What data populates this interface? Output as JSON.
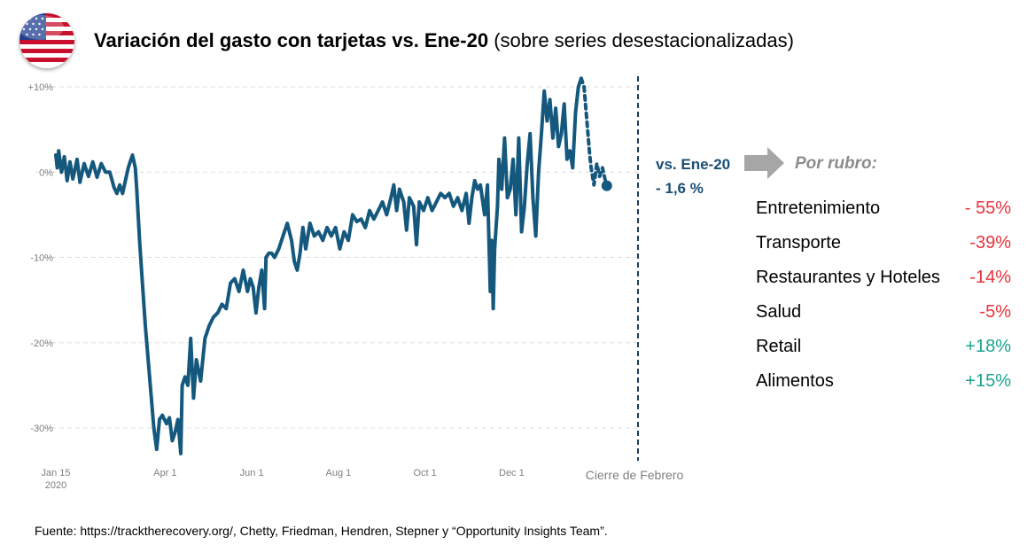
{
  "title": {
    "bold": "Variación del gasto con tarjetas vs. Ene-20",
    "normal": " (sobre series desestacionalizadas)"
  },
  "flag_icon": "us-flag-icon",
  "colors": {
    "series": "#14587d",
    "negative": "#e8323c",
    "positive": "#1aa38f",
    "muted": "#8c8c8c",
    "callout": "#1a4f74"
  },
  "callout": {
    "line1": "vs. Ene-20",
    "line2": "- 1,6 %"
  },
  "por_rubro": "Por rubro:",
  "rubros": [
    {
      "label": "Entretenimiento",
      "value": "- 55%",
      "sign": "negative"
    },
    {
      "label": "Transporte",
      "value": "-39%",
      "sign": "negative"
    },
    {
      "label": "Restaurantes y Hoteles",
      "value": "-14%",
      "sign": "negative"
    },
    {
      "label": "Salud",
      "value": "-5%",
      "sign": "negative"
    },
    {
      "label": "Retail",
      "value": "+18%",
      "sign": "positive"
    },
    {
      "label": "Alimentos",
      "value": "+15%",
      "sign": "positive"
    }
  ],
  "source": "Fuente: https://tracktherecovery.org/, Chetty, Friedman, Hendren, Stepner y “Opportunity Insights Team”.",
  "chart_data": {
    "type": "line",
    "title": "Variación del gasto con tarjetas vs. Ene-20",
    "ylim": [
      -33,
      10.5
    ],
    "yticks": [
      10,
      0,
      -10,
      -20,
      -30
    ],
    "ytick_labels": [
      "+10%",
      "0%",
      "-10%",
      "-20%",
      "-30%"
    ],
    "xlim": [
      "2020-01-15",
      "2021-02-28"
    ],
    "xticks": [
      {
        "date": "2020-01-15",
        "label": "Jan 15",
        "label2": "2020"
      },
      {
        "date": "2020-04-01",
        "label": "Apr 1"
      },
      {
        "date": "2020-06-01",
        "label": "Jun 1"
      },
      {
        "date": "2020-08-01",
        "label": "Aug 1"
      },
      {
        "date": "2020-10-01",
        "label": "Oct 1"
      },
      {
        "date": "2020-12-01",
        "label": "Dec 1"
      },
      {
        "date": "2021-02-28",
        "label": "Cierre de Febrero"
      }
    ],
    "grid": true,
    "series": [
      {
        "values": [
          [
            "2020-01-15",
            2
          ],
          [
            "2020-01-16",
            0.5
          ],
          [
            "2020-01-17",
            2.5
          ],
          [
            "2020-01-19",
            0
          ],
          [
            "2020-01-21",
            1.8
          ],
          [
            "2020-01-23",
            -1
          ],
          [
            "2020-01-25",
            1.2
          ],
          [
            "2020-01-27",
            -0.8
          ],
          [
            "2020-01-30",
            1.5
          ],
          [
            "2020-02-01",
            -1.2
          ],
          [
            "2020-02-04",
            1
          ],
          [
            "2020-02-07",
            -0.5
          ],
          [
            "2020-02-10",
            1.2
          ],
          [
            "2020-02-13",
            -0.6
          ],
          [
            "2020-02-16",
            1
          ],
          [
            "2020-02-19",
            0
          ],
          [
            "2020-02-22",
            0
          ],
          [
            "2020-02-25",
            -1.8
          ],
          [
            "2020-02-27",
            -2.5
          ],
          [
            "2020-02-29",
            -1.5
          ],
          [
            "2020-03-02",
            -2.5
          ],
          [
            "2020-03-04",
            -1
          ],
          [
            "2020-03-06",
            0.5
          ],
          [
            "2020-03-08",
            1.5
          ],
          [
            "2020-03-09",
            2
          ],
          [
            "2020-03-11",
            0.5
          ],
          [
            "2020-03-12",
            -2
          ],
          [
            "2020-03-14",
            -8
          ],
          [
            "2020-03-16",
            -13
          ],
          [
            "2020-03-18",
            -18
          ],
          [
            "2020-03-20",
            -22
          ],
          [
            "2020-03-22",
            -26
          ],
          [
            "2020-03-24",
            -30
          ],
          [
            "2020-03-26",
            -32.5
          ],
          [
            "2020-03-28",
            -29
          ],
          [
            "2020-03-30",
            -28.5
          ],
          [
            "2020-04-02",
            -29.5
          ],
          [
            "2020-04-04",
            -28.8
          ],
          [
            "2020-04-06",
            -31.5
          ],
          [
            "2020-04-08",
            -30.5
          ],
          [
            "2020-04-10",
            -29
          ],
          [
            "2020-04-12",
            -33
          ],
          [
            "2020-04-13",
            -25
          ],
          [
            "2020-04-15",
            -24
          ],
          [
            "2020-04-17",
            -25
          ],
          [
            "2020-04-19",
            -19.5
          ],
          [
            "2020-04-21",
            -26.5
          ],
          [
            "2020-04-23",
            -22
          ],
          [
            "2020-04-26",
            -24.5
          ],
          [
            "2020-04-29",
            -19.5
          ],
          [
            "2020-05-02",
            -18
          ],
          [
            "2020-05-05",
            -17
          ],
          [
            "2020-05-08",
            -16.5
          ],
          [
            "2020-05-11",
            -15.5
          ],
          [
            "2020-05-14",
            -16
          ],
          [
            "2020-05-17",
            -13
          ],
          [
            "2020-05-20",
            -12.5
          ],
          [
            "2020-05-23",
            -14
          ],
          [
            "2020-05-26",
            -11.5
          ],
          [
            "2020-05-29",
            -14
          ],
          [
            "2020-05-31",
            -12.5
          ],
          [
            "2020-06-02",
            -13.5
          ],
          [
            "2020-06-04",
            -16.5
          ],
          [
            "2020-06-06",
            -13.5
          ],
          [
            "2020-06-08",
            -11.5
          ],
          [
            "2020-06-10",
            -16
          ],
          [
            "2020-06-11",
            -10
          ],
          [
            "2020-06-13",
            -9.5
          ],
          [
            "2020-06-15",
            -9.5
          ],
          [
            "2020-06-17",
            -10
          ],
          [
            "2020-06-20",
            -9
          ],
          [
            "2020-06-23",
            -7.5
          ],
          [
            "2020-06-26",
            -6
          ],
          [
            "2020-06-29",
            -8
          ],
          [
            "2020-07-01",
            -10.5
          ],
          [
            "2020-07-03",
            -11.5
          ],
          [
            "2020-07-05",
            -9.5
          ],
          [
            "2020-07-07",
            -6.5
          ],
          [
            "2020-07-09",
            -9
          ],
          [
            "2020-07-12",
            -6
          ],
          [
            "2020-07-15",
            -7.5
          ],
          [
            "2020-07-18",
            -7
          ],
          [
            "2020-07-21",
            -8
          ],
          [
            "2020-07-24",
            -6.5
          ],
          [
            "2020-07-27",
            -7.5
          ],
          [
            "2020-07-30",
            -6.5
          ],
          [
            "2020-08-02",
            -9
          ],
          [
            "2020-08-05",
            -7
          ],
          [
            "2020-08-08",
            -8
          ],
          [
            "2020-08-11",
            -5
          ],
          [
            "2020-08-14",
            -5.8
          ],
          [
            "2020-08-17",
            -5.5
          ],
          [
            "2020-08-20",
            -6.5
          ],
          [
            "2020-08-23",
            -4.5
          ],
          [
            "2020-08-26",
            -5.5
          ],
          [
            "2020-08-29",
            -4.5
          ],
          [
            "2020-09-01",
            -3.5
          ],
          [
            "2020-09-04",
            -5
          ],
          [
            "2020-09-07",
            -3
          ],
          [
            "2020-09-09",
            -1.5
          ],
          [
            "2020-09-11",
            -4.5
          ],
          [
            "2020-09-13",
            -2
          ],
          [
            "2020-09-16",
            -3.5
          ],
          [
            "2020-09-18",
            -6.8
          ],
          [
            "2020-09-20",
            -3
          ],
          [
            "2020-09-23",
            -4
          ],
          [
            "2020-09-25",
            -8.5
          ],
          [
            "2020-09-27",
            -3.5
          ],
          [
            "2020-09-30",
            -4.5
          ],
          [
            "2020-10-03",
            -3
          ],
          [
            "2020-10-06",
            -4.5
          ],
          [
            "2020-10-09",
            -3.5
          ],
          [
            "2020-10-12",
            -2.5
          ],
          [
            "2020-10-15",
            -3
          ],
          [
            "2020-10-18",
            -2.5
          ],
          [
            "2020-10-21",
            -4
          ],
          [
            "2020-10-24",
            -3
          ],
          [
            "2020-10-27",
            -4.5
          ],
          [
            "2020-10-30",
            -2.5
          ],
          [
            "2020-11-01",
            -6
          ],
          [
            "2020-11-03",
            -3
          ],
          [
            "2020-11-05",
            -1
          ],
          [
            "2020-11-07",
            -2
          ],
          [
            "2020-11-09",
            -1.5
          ],
          [
            "2020-11-12",
            -5
          ],
          [
            "2020-11-14",
            -1.5
          ],
          [
            "2020-11-16",
            -14
          ],
          [
            "2020-11-17",
            -8
          ],
          [
            "2020-11-18",
            -16
          ],
          [
            "2020-11-19",
            -9
          ],
          [
            "2020-11-21",
            -4
          ],
          [
            "2020-11-22",
            1.5
          ],
          [
            "2020-11-24",
            -2
          ],
          [
            "2020-11-26",
            4
          ],
          [
            "2020-11-28",
            -3
          ],
          [
            "2020-11-30",
            -2
          ],
          [
            "2020-12-02",
            1.5
          ],
          [
            "2020-12-04",
            -5
          ],
          [
            "2020-12-06",
            4
          ],
          [
            "2020-12-08",
            -7
          ],
          [
            "2020-12-10",
            -4
          ],
          [
            "2020-12-12",
            1
          ],
          [
            "2020-12-14",
            4.5
          ],
          [
            "2020-12-16",
            -3
          ],
          [
            "2020-12-18",
            -7.5
          ],
          [
            "2020-12-20",
            0
          ],
          [
            "2020-12-22",
            4.5
          ],
          [
            "2020-12-24",
            9.5
          ],
          [
            "2020-12-26",
            6
          ],
          [
            "2020-12-28",
            8.5
          ],
          [
            "2020-12-30",
            4
          ],
          [
            "2021-01-01",
            7.5
          ],
          [
            "2021-01-03",
            3
          ],
          [
            "2021-01-05",
            4.5
          ],
          [
            "2021-01-07",
            8
          ],
          [
            "2021-01-09",
            1.5
          ],
          [
            "2021-01-11",
            2.5
          ],
          [
            "2021-01-13",
            0.5
          ],
          [
            "2021-01-15",
            7
          ],
          [
            "2021-01-17",
            10
          ],
          [
            "2021-01-19",
            11
          ]
        ]
      },
      {
        "style": "dashed",
        "values": [
          [
            "2021-01-19",
            11
          ],
          [
            "2021-01-21",
            10
          ],
          [
            "2021-01-23",
            6
          ],
          [
            "2021-01-25",
            2
          ],
          [
            "2021-01-26",
            0.5
          ],
          [
            "2021-01-28",
            -1.5
          ],
          [
            "2021-01-30",
            1
          ],
          [
            "2021-02-01",
            -0.5
          ],
          [
            "2021-02-03",
            0.5
          ],
          [
            "2021-02-05",
            -1
          ]
        ]
      }
    ],
    "end_point": [
      "2021-02-06",
      -1.6
    ],
    "reference_line": {
      "date": "2021-02-28",
      "style": "dashed"
    }
  }
}
